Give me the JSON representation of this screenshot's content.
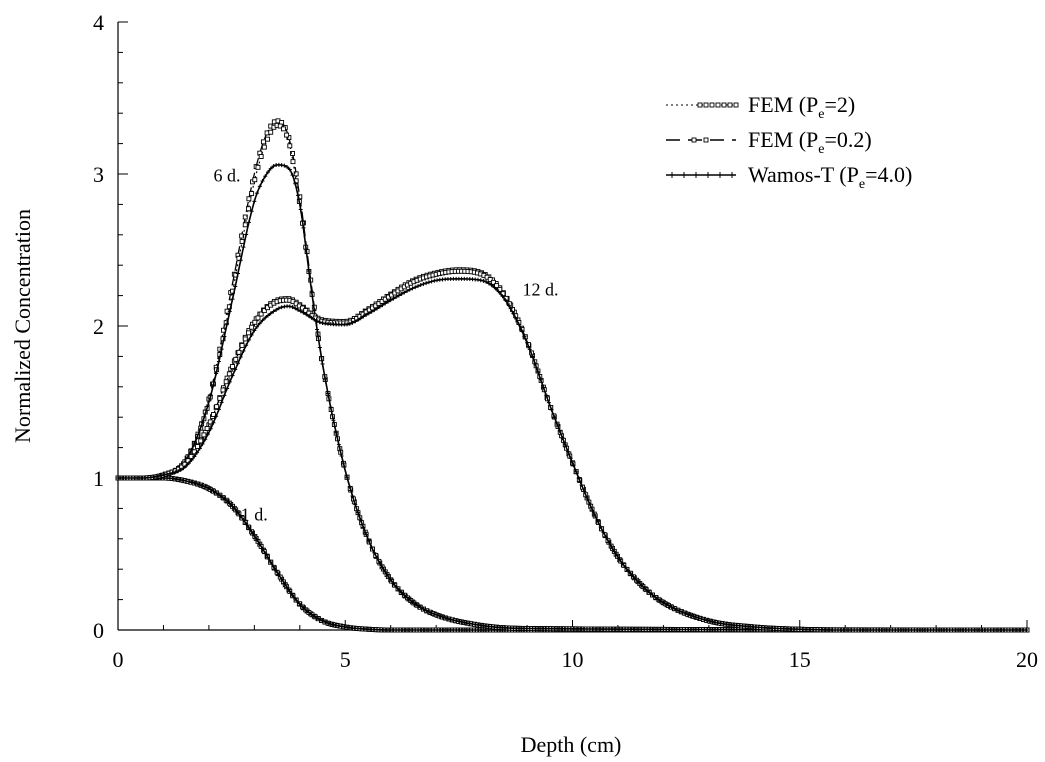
{
  "chart_data": {
    "type": "line",
    "title": "",
    "xlabel": "Depth (cm)",
    "ylabel": "Normalized Concentration",
    "xlim": [
      0,
      20
    ],
    "ylim": [
      0,
      4
    ],
    "x_ticks": [
      0,
      5,
      10,
      15,
      20
    ],
    "y_ticks": [
      0,
      1,
      2,
      3,
      4
    ],
    "grid": false,
    "legend_position": "top-right",
    "legend": [
      {
        "base": "FEM (P",
        "sub": "e",
        "tail": "=2)",
        "style": "dotted-squares"
      },
      {
        "base": "FEM (P",
        "sub": "e",
        "tail": "=0.2)",
        "style": "dashed-squares"
      },
      {
        "base": "Wamos-T (P",
        "sub": "e",
        "tail": "=4.0)",
        "style": "solid-plus"
      }
    ],
    "annotations": [
      {
        "text": "6 d.",
        "x": 2.1,
        "y": 2.95
      },
      {
        "text": "12 d.",
        "x": 8.9,
        "y": 2.2
      },
      {
        "text": "1 d.",
        "x": 2.7,
        "y": 0.72
      }
    ],
    "series": [
      {
        "time": "1 d.",
        "x": [
          0,
          0.5,
          1.0,
          1.5,
          2.0,
          2.5,
          3.0,
          3.5,
          4.0,
          4.5,
          5.0,
          5.5,
          6.0,
          7.0,
          20
        ],
        "fem_pe2": [
          1.0,
          1.0,
          1.0,
          0.98,
          0.93,
          0.82,
          0.62,
          0.38,
          0.17,
          0.06,
          0.02,
          0.005,
          0,
          0,
          0
        ],
        "fem_pe02": [
          1.0,
          1.0,
          1.0,
          0.98,
          0.93,
          0.82,
          0.62,
          0.38,
          0.17,
          0.06,
          0.02,
          0.005,
          0,
          0,
          0
        ],
        "wamos_pe4": [
          1.0,
          1.0,
          1.0,
          0.98,
          0.93,
          0.82,
          0.62,
          0.38,
          0.17,
          0.06,
          0.02,
          0.005,
          0,
          0,
          0
        ]
      },
      {
        "time": "6 d.",
        "x": [
          0,
          0.5,
          1.0,
          1.5,
          2.0,
          2.5,
          3.0,
          3.25,
          3.5,
          3.75,
          4.0,
          4.25,
          4.5,
          5.0,
          5.5,
          6.0,
          6.5,
          7.0,
          8.0,
          9.0,
          20
        ],
        "fem_pe2": [
          1.0,
          1.0,
          1.02,
          1.12,
          1.5,
          2.2,
          2.95,
          3.2,
          3.32,
          3.22,
          2.8,
          2.25,
          1.75,
          1.05,
          0.6,
          0.33,
          0.18,
          0.1,
          0.03,
          0.01,
          0
        ],
        "fem_pe02": [
          1.0,
          1.0,
          1.02,
          1.12,
          1.52,
          2.25,
          3.0,
          3.25,
          3.35,
          3.25,
          2.85,
          2.28,
          1.75,
          1.05,
          0.6,
          0.33,
          0.18,
          0.1,
          0.03,
          0.01,
          0
        ],
        "wamos_pe4": [
          1.0,
          1.0,
          1.02,
          1.12,
          1.5,
          2.15,
          2.82,
          2.99,
          3.06,
          3.04,
          2.8,
          2.25,
          1.75,
          1.05,
          0.6,
          0.33,
          0.18,
          0.1,
          0.03,
          0.01,
          0
        ]
      },
      {
        "time": "12 d.",
        "x": [
          0,
          0.5,
          1.0,
          1.5,
          2.0,
          2.5,
          3.0,
          3.5,
          3.75,
          4.0,
          4.5,
          5.0,
          5.5,
          6.0,
          6.5,
          7.0,
          7.5,
          8.0,
          8.5,
          9.0,
          9.5,
          10.0,
          10.5,
          11.0,
          11.5,
          12.0,
          13.0,
          14.0,
          15.0,
          16.0,
          20
        ],
        "fem_pe2": [
          1.0,
          1.0,
          1.02,
          1.1,
          1.35,
          1.72,
          2.02,
          2.16,
          2.17,
          2.13,
          2.03,
          2.02,
          2.1,
          2.2,
          2.29,
          2.34,
          2.36,
          2.34,
          2.2,
          1.9,
          1.48,
          1.1,
          0.75,
          0.48,
          0.3,
          0.18,
          0.06,
          0.02,
          0.005,
          0,
          0
        ],
        "fem_pe02": [
          1.0,
          1.0,
          1.02,
          1.1,
          1.35,
          1.73,
          2.03,
          2.17,
          2.18,
          2.14,
          2.04,
          2.03,
          2.11,
          2.21,
          2.3,
          2.35,
          2.37,
          2.35,
          2.21,
          1.9,
          1.48,
          1.1,
          0.75,
          0.48,
          0.3,
          0.18,
          0.06,
          0.02,
          0.005,
          0,
          0
        ],
        "wamos_pe4": [
          1.0,
          1.0,
          1.02,
          1.08,
          1.3,
          1.66,
          1.97,
          2.11,
          2.13,
          2.1,
          2.02,
          2.01,
          2.08,
          2.17,
          2.25,
          2.3,
          2.31,
          2.3,
          2.18,
          1.89,
          1.48,
          1.1,
          0.75,
          0.48,
          0.3,
          0.18,
          0.06,
          0.02,
          0.005,
          0,
          0
        ]
      }
    ]
  }
}
